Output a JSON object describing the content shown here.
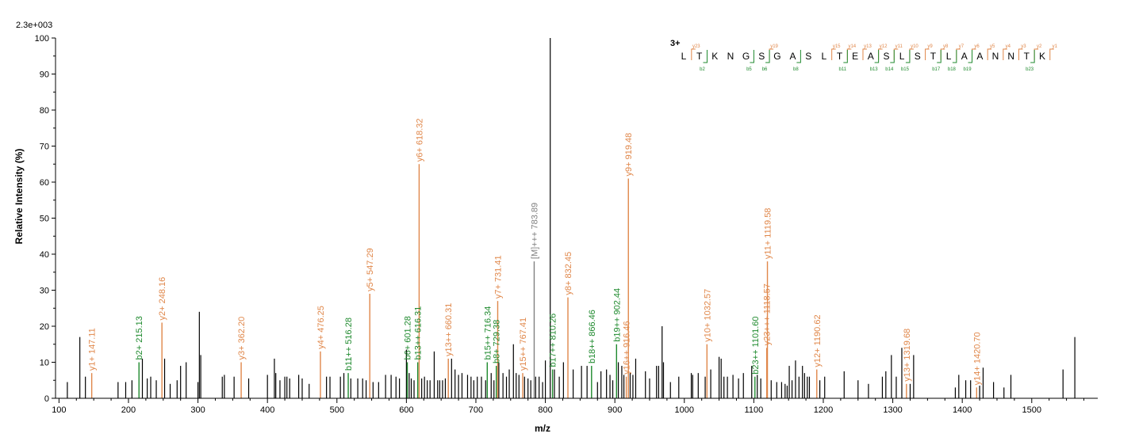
{
  "chart_data": {
    "type": "bar",
    "title": "",
    "intensity_max": "2.3e+003",
    "xlabel": "m/z",
    "ylabel": "Relative   Intensity (%)",
    "xlim": [
      95,
      1595
    ],
    "ylim": [
      0,
      100
    ],
    "x_ticks": [
      100,
      200,
      300,
      400,
      500,
      600,
      700,
      800,
      900,
      1000,
      1100,
      1200,
      1300,
      1400,
      1500
    ],
    "y_ticks": [
      0,
      10,
      20,
      30,
      40,
      50,
      60,
      70,
      80,
      90,
      100
    ],
    "colors": {
      "y_ion": "#e0874a",
      "b_ion": "#1f8a2e",
      "precursor": "#808080",
      "unlabeled": "#000000",
      "charge": "#00008b"
    },
    "annotated_peaks": [
      {
        "x": 147.11,
        "y": 7,
        "ion": "y",
        "label": "y1+ 147.11"
      },
      {
        "x": 215.13,
        "y": 10,
        "ion": "b",
        "label": "b2+ 215.13"
      },
      {
        "x": 248.16,
        "y": 21,
        "ion": "y",
        "label": "y2+ 248.16"
      },
      {
        "x": 362.2,
        "y": 10,
        "ion": "y",
        "label": "y3+ 362.20"
      },
      {
        "x": 476.25,
        "y": 13,
        "ion": "y",
        "label": "y4+ 476.25"
      },
      {
        "x": 516.28,
        "y": 7,
        "ion": "b",
        "label": "b11++ 516.28"
      },
      {
        "x": 547.29,
        "y": 29,
        "ion": "y",
        "label": "y5+ 547.29"
      },
      {
        "x": 601.28,
        "y": 10,
        "ion": "b",
        "label": "b6+ 601.28"
      },
      {
        "x": 616.31,
        "y": 10,
        "ion": "b",
        "label": "b13++ 616.31"
      },
      {
        "x": 618.32,
        "y": 65,
        "ion": "y",
        "label": "y6+ 618.32"
      },
      {
        "x": 660.31,
        "y": 11,
        "ion": "y",
        "label": "y13++ 660.31"
      },
      {
        "x": 716.34,
        "y": 10,
        "ion": "b",
        "label": "b15++ 716.34"
      },
      {
        "x": 729.38,
        "y": 9,
        "ion": "b",
        "label": "b8+ 729.38"
      },
      {
        "x": 731.41,
        "y": 27,
        "ion": "y",
        "label": "y7+ 731.41"
      },
      {
        "x": 767.41,
        "y": 7,
        "ion": "y",
        "label": "y15++ 767.41"
      },
      {
        "x": 783.89,
        "y": 38,
        "ion": "M",
        "label": "[M]+++ 783.89"
      },
      {
        "x": 810.26,
        "y": 8,
        "ion": "b",
        "label": "b17++ 810.26"
      },
      {
        "x": 832.45,
        "y": 28,
        "ion": "y",
        "label": "y8+ 832.45"
      },
      {
        "x": 866.46,
        "y": 9,
        "ion": "b",
        "label": "b18++ 866.46"
      },
      {
        "x": 902.44,
        "y": 15,
        "ion": "b",
        "label": "b19++ 902.44"
      },
      {
        "x": 916.46,
        "y": 6,
        "ion": "y",
        "label": "y16++ 916.46"
      },
      {
        "x": 919.48,
        "y": 61,
        "ion": "y",
        "label": "y9+ 919.48"
      },
      {
        "x": 1032.57,
        "y": 15,
        "ion": "y",
        "label": "y10+ 1032.57"
      },
      {
        "x": 1101.6,
        "y": 6,
        "ion": "b",
        "label": "b23++ 1101.60"
      },
      {
        "x": 1118.57,
        "y": 14,
        "ion": "y",
        "label": "y23+++ 1118.57"
      },
      {
        "x": 1119.58,
        "y": 38,
        "ion": "y",
        "label": "y11+ 1119.58"
      },
      {
        "x": 1190.62,
        "y": 8,
        "ion": "y",
        "label": "y12+ 1190.62"
      },
      {
        "x": 1319.68,
        "y": 4,
        "ion": "y",
        "label": "y13+ 1319.68"
      },
      {
        "x": 1420.7,
        "y": 3,
        "ion": "y",
        "label": "y14+ 1420.70"
      }
    ],
    "unlabeled_peaks": [
      [
        112,
        4.5
      ],
      [
        130,
        17
      ],
      [
        138,
        6
      ],
      [
        185,
        4.5
      ],
      [
        196,
        4.5
      ],
      [
        205,
        5
      ],
      [
        220,
        11
      ],
      [
        227,
        5.5
      ],
      [
        232,
        6
      ],
      [
        240,
        5
      ],
      [
        252,
        11
      ],
      [
        260,
        4
      ],
      [
        270,
        5
      ],
      [
        275,
        9
      ],
      [
        283,
        10
      ],
      [
        300,
        4.5
      ],
      [
        302,
        24
      ],
      [
        304,
        12
      ],
      [
        335,
        6
      ],
      [
        338,
        6.5
      ],
      [
        352,
        6
      ],
      [
        373,
        5.5
      ],
      [
        400,
        6.5
      ],
      [
        410,
        11
      ],
      [
        412,
        7
      ],
      [
        418,
        5
      ],
      [
        425,
        6
      ],
      [
        428,
        6
      ],
      [
        432,
        5.5
      ],
      [
        445,
        6.5
      ],
      [
        450,
        5.5
      ],
      [
        460,
        4
      ],
      [
        485,
        6
      ],
      [
        490,
        6
      ],
      [
        505,
        6
      ],
      [
        510,
        7
      ],
      [
        520,
        5.5
      ],
      [
        530,
        5.5
      ],
      [
        537,
        5.5
      ],
      [
        542,
        5
      ],
      [
        552,
        4.5
      ],
      [
        560,
        4.5
      ],
      [
        570,
        6.5
      ],
      [
        578,
        6.5
      ],
      [
        585,
        6
      ],
      [
        590,
        5.5
      ],
      [
        600,
        13.5
      ],
      [
        604,
        7
      ],
      [
        607,
        5.5
      ],
      [
        611,
        5
      ],
      [
        622,
        5.5
      ],
      [
        626,
        6
      ],
      [
        630,
        5
      ],
      [
        634,
        5
      ],
      [
        640,
        13
      ],
      [
        645,
        5
      ],
      [
        648,
        5
      ],
      [
        652,
        5
      ],
      [
        656,
        5.5
      ],
      [
        665,
        11
      ],
      [
        670,
        8
      ],
      [
        675,
        6.5
      ],
      [
        680,
        7
      ],
      [
        688,
        6.5
      ],
      [
        693,
        6
      ],
      [
        697,
        5
      ],
      [
        702,
        6
      ],
      [
        708,
        6
      ],
      [
        714,
        5
      ],
      [
        722,
        7
      ],
      [
        726,
        5
      ],
      [
        733,
        10
      ],
      [
        739,
        7
      ],
      [
        744,
        6
      ],
      [
        748,
        8
      ],
      [
        754,
        15
      ],
      [
        758,
        7
      ],
      [
        762,
        6.5
      ],
      [
        770,
        6
      ],
      [
        775,
        5.5
      ],
      [
        779,
        5
      ],
      [
        786,
        6
      ],
      [
        791,
        6
      ],
      [
        796,
        4.5
      ],
      [
        800,
        10.5
      ],
      [
        807,
        100
      ],
      [
        813,
        8
      ],
      [
        820,
        6
      ],
      [
        826,
        10
      ],
      [
        840,
        8
      ],
      [
        852,
        9
      ],
      [
        860,
        9
      ],
      [
        875,
        4.5
      ],
      [
        880,
        7.5
      ],
      [
        888,
        8
      ],
      [
        893,
        6.5
      ],
      [
        897,
        5
      ],
      [
        905,
        10
      ],
      [
        910,
        9
      ],
      [
        913,
        6.5
      ],
      [
        922,
        7
      ],
      [
        926,
        6.5
      ],
      [
        930,
        11
      ],
      [
        944,
        7.5
      ],
      [
        950,
        5.5
      ],
      [
        960,
        9
      ],
      [
        963,
        9
      ],
      [
        968,
        20
      ],
      [
        970,
        10
      ],
      [
        980,
        4.5
      ],
      [
        992,
        6
      ],
      [
        1010,
        7
      ],
      [
        1012,
        6.5
      ],
      [
        1020,
        7
      ],
      [
        1030,
        6
      ],
      [
        1038,
        8
      ],
      [
        1050,
        11.5
      ],
      [
        1053,
        11
      ],
      [
        1057,
        6
      ],
      [
        1062,
        6
      ],
      [
        1070,
        6.5
      ],
      [
        1078,
        5.5
      ],
      [
        1085,
        7
      ],
      [
        1097,
        9
      ],
      [
        1105,
        6.5
      ],
      [
        1110,
        5.5
      ],
      [
        1125,
        5
      ],
      [
        1133,
        4.5
      ],
      [
        1140,
        4.5
      ],
      [
        1145,
        4
      ],
      [
        1148,
        3.5
      ],
      [
        1151,
        9
      ],
      [
        1155,
        5
      ],
      [
        1160,
        10.5
      ],
      [
        1165,
        6
      ],
      [
        1170,
        9
      ],
      [
        1173,
        7
      ],
      [
        1177,
        6
      ],
      [
        1180,
        6
      ],
      [
        1195,
        5
      ],
      [
        1202,
        6
      ],
      [
        1230,
        7.5
      ],
      [
        1250,
        5
      ],
      [
        1265,
        4
      ],
      [
        1285,
        6
      ],
      [
        1290,
        7.5
      ],
      [
        1298,
        12
      ],
      [
        1305,
        6
      ],
      [
        1313,
        14
      ],
      [
        1325,
        4
      ],
      [
        1330,
        12
      ],
      [
        1390,
        3
      ],
      [
        1395,
        6.5
      ],
      [
        1405,
        5
      ],
      [
        1412,
        5
      ],
      [
        1425,
        3.5
      ],
      [
        1430,
        8.5
      ],
      [
        1445,
        4.5
      ],
      [
        1460,
        3
      ],
      [
        1470,
        6.5
      ],
      [
        1545,
        8
      ],
      [
        1562,
        17
      ]
    ],
    "sequence": {
      "charge": "3+",
      "residues": [
        "L",
        "T",
        "K",
        "N",
        "G",
        "S",
        "G",
        "A",
        "S",
        "L",
        "T",
        "E",
        "A",
        "S",
        "L",
        "S",
        "T",
        "L",
        "A",
        "A",
        "N",
        "N",
        "T",
        "K"
      ],
      "y_ions": [
        {
          "gap": 1,
          "label": "y23"
        },
        {
          "gap": 6,
          "label": "y19"
        },
        {
          "gap": 10,
          "label": "y15"
        },
        {
          "gap": 11,
          "label": "y14"
        },
        {
          "gap": 12,
          "label": "y13"
        },
        {
          "gap": 13,
          "label": "y12"
        },
        {
          "gap": 14,
          "label": "y11"
        },
        {
          "gap": 15,
          "label": "y10"
        },
        {
          "gap": 16,
          "label": "y9"
        },
        {
          "gap": 17,
          "label": "y8"
        },
        {
          "gap": 18,
          "label": "y7"
        },
        {
          "gap": 19,
          "label": "y6"
        },
        {
          "gap": 20,
          "label": "y5"
        },
        {
          "gap": 21,
          "label": "y4"
        },
        {
          "gap": 22,
          "label": "y3"
        },
        {
          "gap": 23,
          "label": "y2"
        },
        {
          "gap": 24,
          "label": "y1"
        }
      ],
      "b_ions": [
        {
          "gap": 2,
          "label": "b2"
        },
        {
          "gap": 5,
          "label": "b5"
        },
        {
          "gap": 6,
          "label": "b6"
        },
        {
          "gap": 8,
          "label": "b8"
        },
        {
          "gap": 11,
          "label": "b11"
        },
        {
          "gap": 13,
          "label": "b13"
        },
        {
          "gap": 14,
          "label": "b14"
        },
        {
          "gap": 15,
          "label": "b15"
        },
        {
          "gap": 17,
          "label": "b17"
        },
        {
          "gap": 18,
          "label": "b18"
        },
        {
          "gap": 19,
          "label": "b19"
        },
        {
          "gap": 23,
          "label": "b23"
        }
      ]
    }
  }
}
